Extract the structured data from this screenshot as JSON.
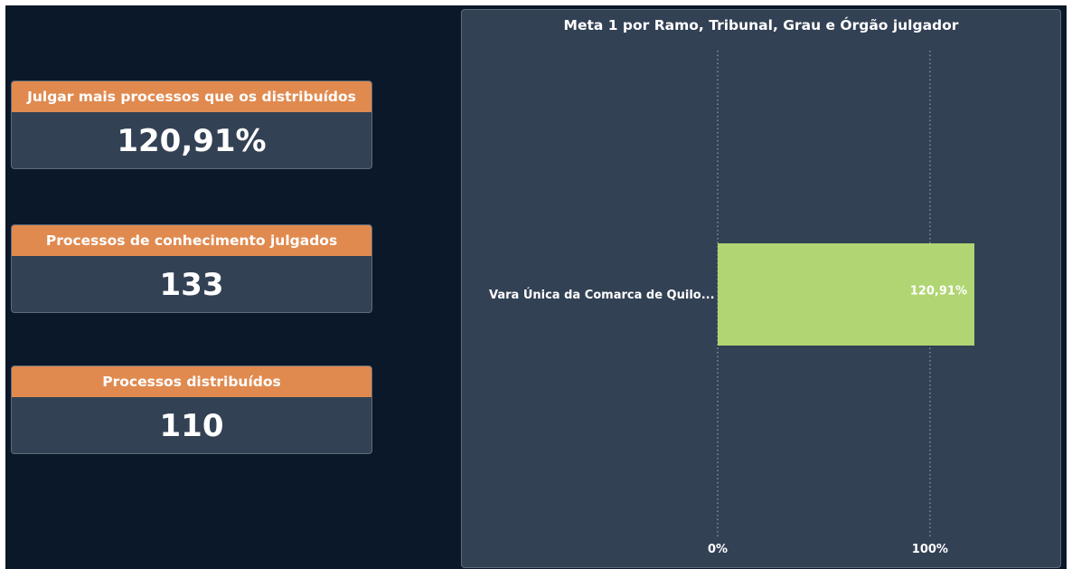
{
  "kpis": [
    {
      "title": "Julgar mais processos que os distribuídos",
      "value": "120,91%"
    },
    {
      "title": "Processos de conhecimento julgados",
      "value": "133"
    },
    {
      "title": "Processos distribuídos",
      "value": "110"
    }
  ],
  "chart_data": {
    "type": "bar",
    "orientation": "horizontal",
    "title": "Meta 1 por Ramo, Tribunal, Grau e Órgão julgador",
    "categories": [
      "Vara Única da Comarca de Quilo..."
    ],
    "values": [
      120.91
    ],
    "value_labels": [
      "120,91%"
    ],
    "xlim": [
      0,
      120.91
    ],
    "x_ticks": [
      0,
      100
    ],
    "x_tick_labels": [
      "0%",
      "100%"
    ],
    "grid": true,
    "colors": {
      "bar": "#b0d572",
      "gridline": "#a9b3bf"
    }
  }
}
